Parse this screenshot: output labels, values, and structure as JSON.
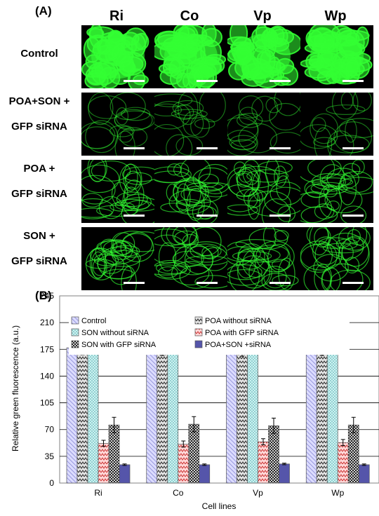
{
  "panel_a": {
    "label": "(A)",
    "columns": [
      "Ri",
      "Co",
      "Vp",
      "Wp"
    ],
    "rows": [
      {
        "line1": "Control",
        "line2": ""
      },
      {
        "line1": "POA+SON +",
        "line2": "GFP siRNA"
      },
      {
        "line1": "POA +",
        "line2": "GFP siRNA"
      },
      {
        "line1": "SON +",
        "line2": "GFP siRNA"
      }
    ],
    "image_color": "#33ff33"
  },
  "panel_b": {
    "label": "(B)"
  },
  "chart_data": {
    "type": "bar",
    "title": "",
    "xlabel": "Cell lines",
    "ylabel": "Relative green fluorescence (a.u.)",
    "ylim": [
      0,
      245
    ],
    "yticks": [
      0,
      35,
      70,
      105,
      140,
      175,
      210,
      245
    ],
    "grid": true,
    "legend_position": "top",
    "categories": [
      "Ri",
      "Co",
      "Vp",
      "Wp"
    ],
    "series": [
      {
        "name": "Control",
        "values": [
          177,
          177,
          176,
          177
        ],
        "errors": [
          7,
          7,
          7,
          7
        ],
        "fill": "#dcdcff",
        "pattern": "diag-left",
        "pattern_color": "#9999dd"
      },
      {
        "name": "POA without siRNA",
        "values": [
          177,
          177,
          176,
          177
        ],
        "errors": [
          9,
          10,
          10,
          10
        ],
        "fill": "#e4e4e4",
        "pattern": "zigzag",
        "pattern_color": "#333333"
      },
      {
        "name": "SON without siRNA",
        "values": [
          177,
          177,
          176,
          177
        ],
        "errors": [
          7,
          7,
          7,
          7
        ],
        "fill": "#cdf3f3",
        "pattern": "dots",
        "pattern_color": "#4da6a6"
      },
      {
        "name": "POA with GFP siRNA",
        "values": [
          52,
          51,
          54,
          53
        ],
        "errors": [
          4,
          4,
          4,
          4
        ],
        "fill": "#ffd9d9",
        "pattern": "wave",
        "pattern_color": "#cc3333"
      },
      {
        "name": "SON with GFP siRNA",
        "values": [
          76,
          77,
          75,
          76
        ],
        "errors": [
          10,
          10,
          10,
          10
        ],
        "fill": "#d0d0d0",
        "pattern": "checker",
        "pattern_color": "#222222"
      },
      {
        "name": "POA+SON +siRNA",
        "values": [
          24,
          24,
          25,
          24
        ],
        "errors": [
          1,
          1,
          1,
          1
        ],
        "fill": "#5555aa",
        "pattern": "solid",
        "pattern_color": "#5555aa"
      }
    ]
  }
}
